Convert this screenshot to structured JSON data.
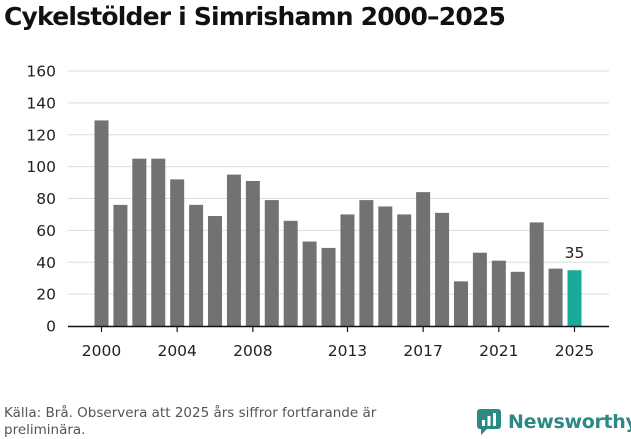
{
  "title": "Cykelstölder i Simrishamn 2000–2025",
  "source": "Källa: Brå. Observera att 2025 års siffror fortfarande är preliminära.",
  "brand": {
    "name": "Newsworthy",
    "icon": "newsworthy-logo-icon",
    "color": "#2b8a86"
  },
  "chart_data": {
    "type": "bar",
    "title": "Cykelstölder i Simrishamn 2000–2025",
    "xlabel": "",
    "ylabel": "",
    "categories": [
      "2000",
      "2001",
      "2002",
      "2003",
      "2004",
      "2005",
      "2006",
      "2007",
      "2008",
      "2009",
      "2010",
      "2011",
      "2012",
      "2013",
      "2014",
      "2015",
      "2016",
      "2017",
      "2018",
      "2019",
      "2020",
      "2021",
      "2022",
      "2023",
      "2024",
      "2025"
    ],
    "values": [
      129,
      76,
      105,
      105,
      92,
      76,
      69,
      95,
      91,
      79,
      66,
      53,
      49,
      70,
      79,
      75,
      70,
      84,
      71,
      28,
      46,
      41,
      34,
      65,
      36,
      35
    ],
    "x_tick_labels": [
      "2000",
      "2004",
      "2008",
      "2013",
      "2017",
      "2021",
      "2025"
    ],
    "y_ticks": [
      0,
      20,
      40,
      60,
      80,
      100,
      120,
      140,
      160
    ],
    "ylim": [
      0,
      160
    ],
    "grid": true,
    "bar_color": "#727272",
    "highlight_color": "#1aaa9b",
    "highlight_category": "2025",
    "data_labels": [
      {
        "category": "2025",
        "text": "35"
      }
    ]
  }
}
